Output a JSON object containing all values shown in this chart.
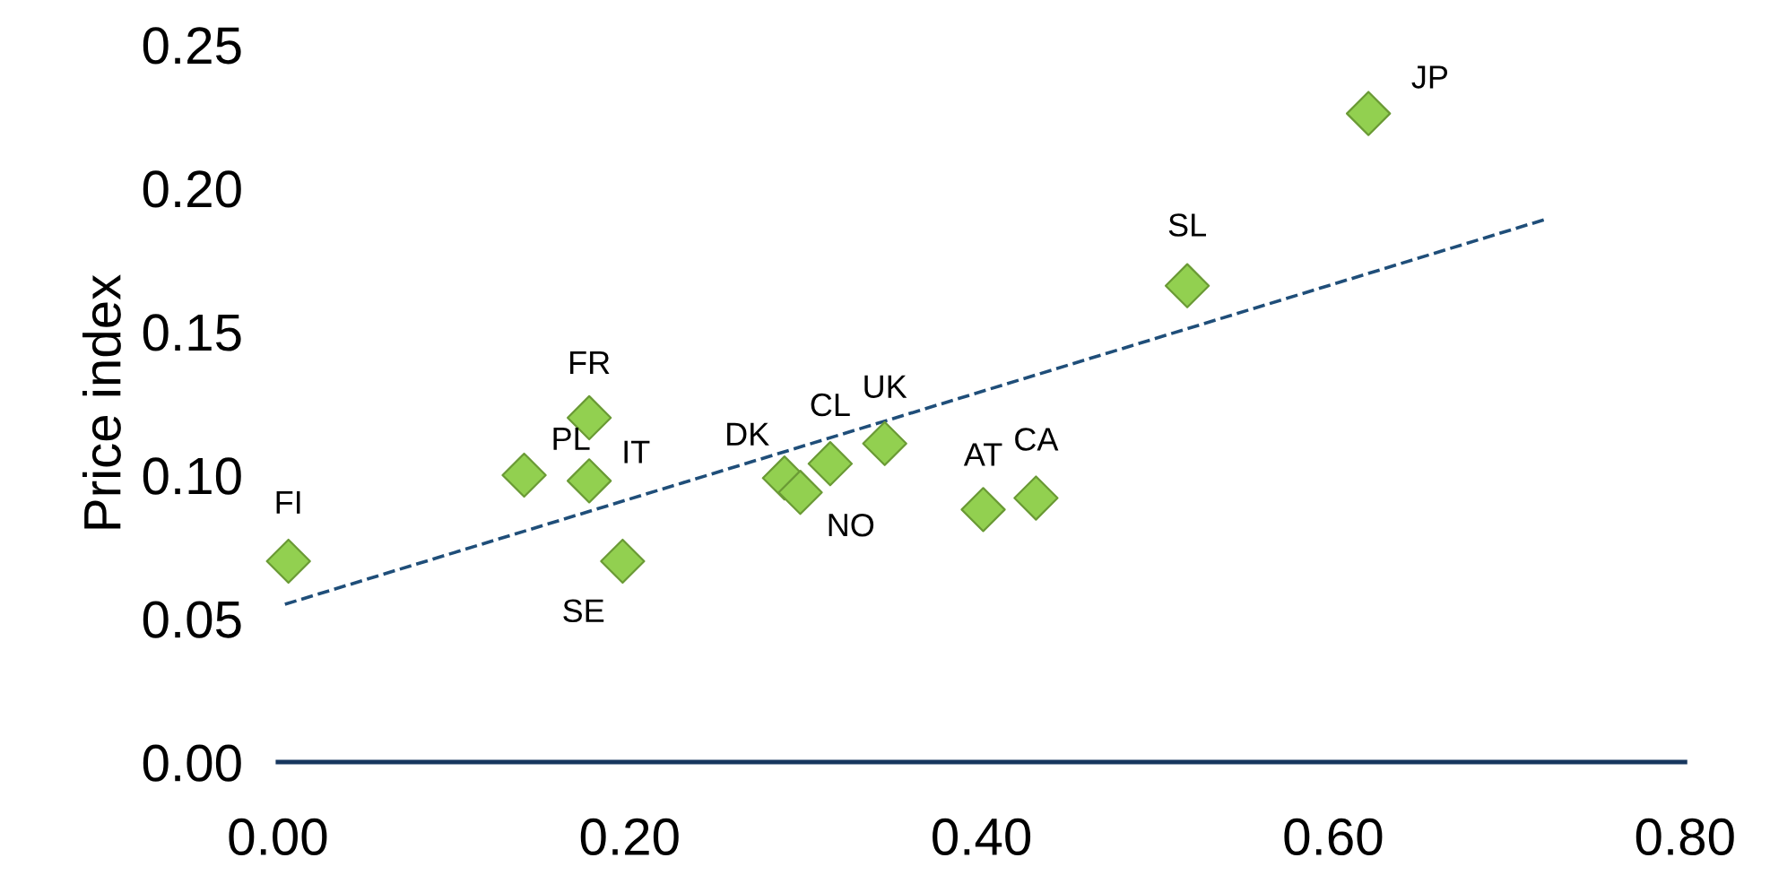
{
  "chart_data": {
    "type": "scatter",
    "ylabel": "Price index",
    "xlim": [
      0,
      0.8
    ],
    "ylim": [
      0,
      0.25
    ],
    "xticks": [
      {
        "value": 0,
        "label": "0.00"
      },
      {
        "value": 0.2,
        "label": "0.20"
      },
      {
        "value": 0.4,
        "label": "0.40"
      },
      {
        "value": 0.6,
        "label": "0.60"
      },
      {
        "value": 0.8,
        "label": "0.80"
      }
    ],
    "yticks": [
      {
        "value": 0,
        "label": "0.00"
      },
      {
        "value": 0.05,
        "label": "0.05"
      },
      {
        "value": 0.1,
        "label": "0.10"
      },
      {
        "value": 0.15,
        "label": "0.15"
      },
      {
        "value": 0.2,
        "label": "0.20"
      },
      {
        "value": 0.25,
        "label": "0.25"
      }
    ],
    "grid": false,
    "legend": false,
    "series": [
      {
        "color": "#92d050",
        "marker": "diamond",
        "x": [
          0.006,
          0.14,
          0.177,
          0.177,
          0.196,
          0.288,
          0.297,
          0.314,
          0.345,
          0.401,
          0.431,
          0.517,
          0.62
        ],
        "values": [
          0.07,
          0.1,
          0.12,
          0.098,
          0.07,
          0.099,
          0.094,
          0.104,
          0.111,
          0.088,
          0.092,
          0.166,
          0.226
        ]
      },
      {
        "type": "line",
        "color": "#1f4e79",
        "line_style": "dashed",
        "marker": "none",
        "x": [
          0.004,
          0.72
        ],
        "values": [
          0.055,
          0.189
        ]
      }
    ],
    "annotations": [
      {
        "text": "FI",
        "x": 0.006,
        "y": 0.07
      },
      {
        "text": "PL",
        "x": 0.14,
        "y": 0.1
      },
      {
        "text": "FR",
        "x": 0.177,
        "y": 0.12
      },
      {
        "text": "IT",
        "x": 0.177,
        "y": 0.098
      },
      {
        "text": "SE",
        "x": 0.196,
        "y": 0.07
      },
      {
        "text": "DK",
        "x": 0.288,
        "y": 0.099
      },
      {
        "text": "NO",
        "x": 0.297,
        "y": 0.094
      },
      {
        "text": "CL",
        "x": 0.314,
        "y": 0.104
      },
      {
        "text": "UK",
        "x": 0.345,
        "y": 0.111
      },
      {
        "text": "AT",
        "x": 0.401,
        "y": 0.088
      },
      {
        "text": "CA",
        "x": 0.431,
        "y": 0.092
      },
      {
        "text": "SL",
        "x": 0.517,
        "y": 0.166
      },
      {
        "text": "JP",
        "x": 0.62,
        "y": 0.226
      }
    ]
  }
}
